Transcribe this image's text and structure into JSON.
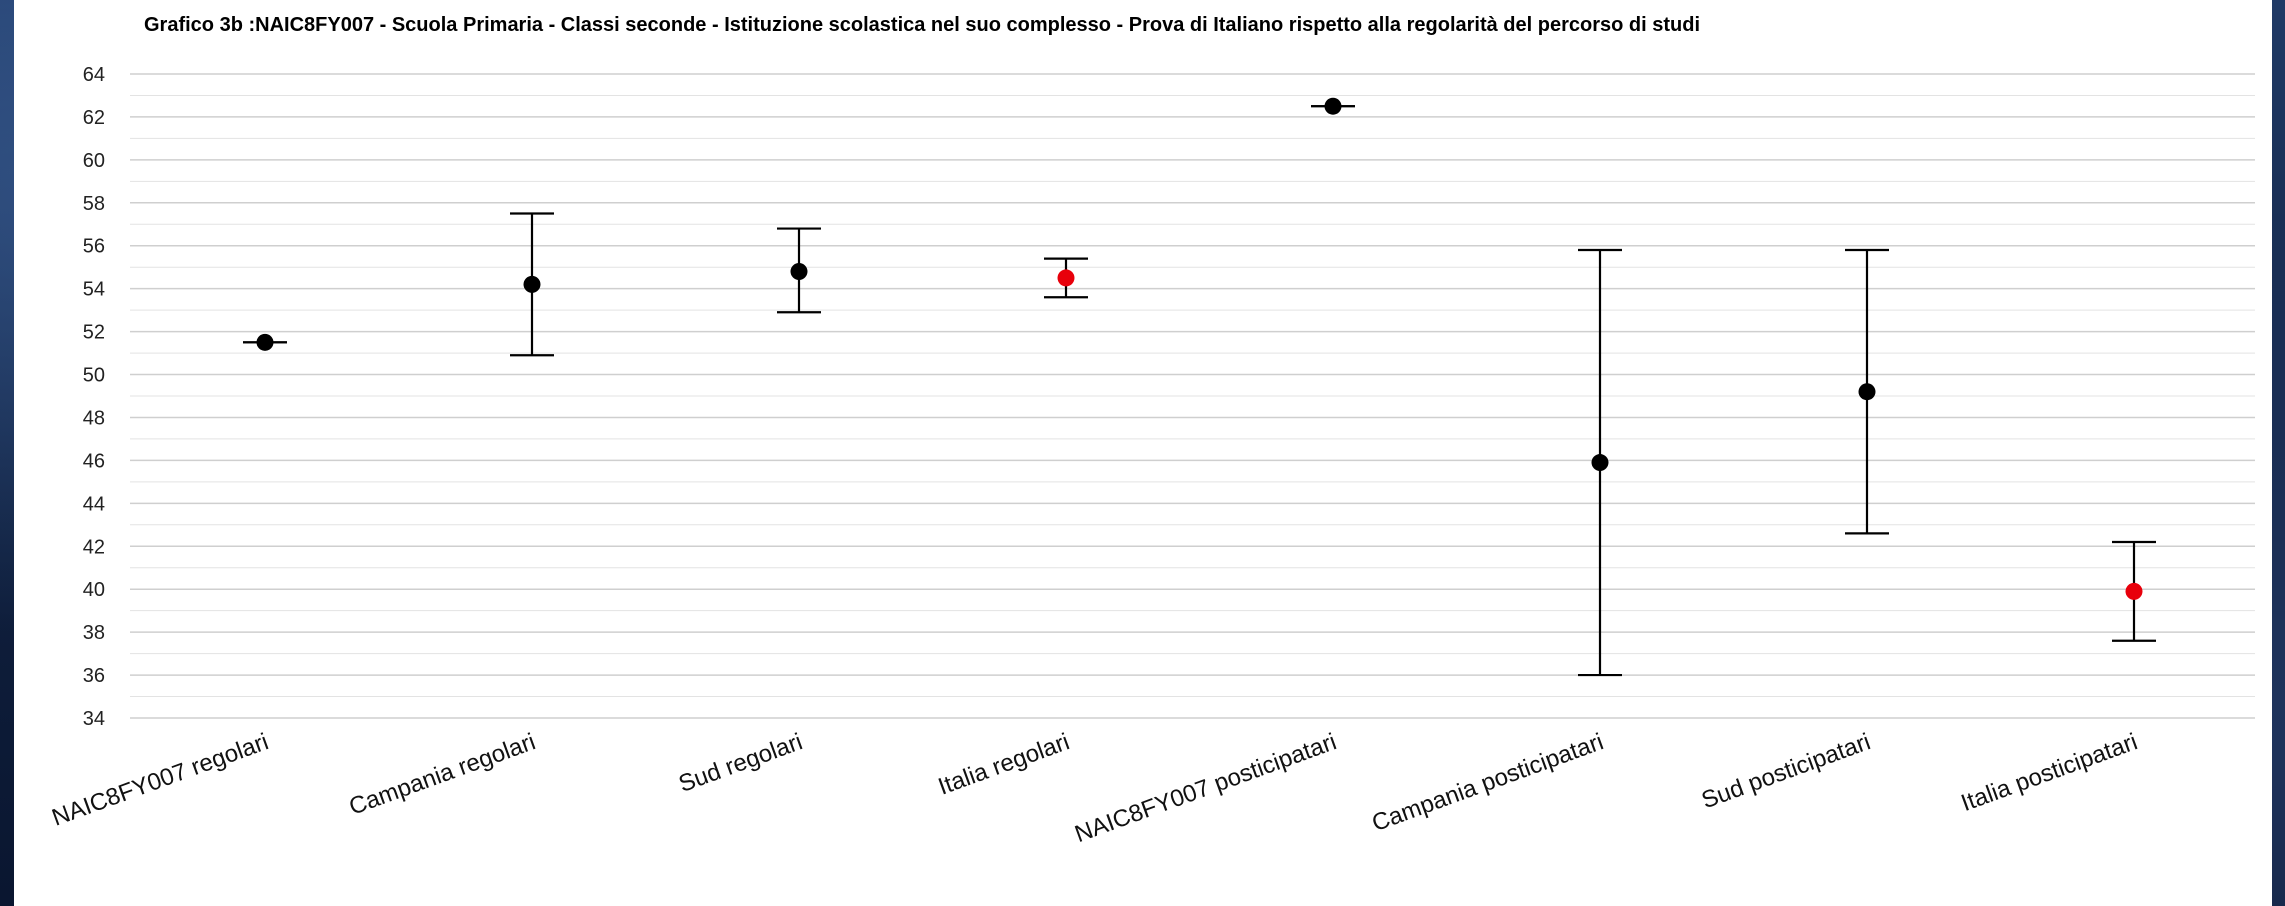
{
  "chart_data": {
    "type": "scatter",
    "subtype": "error-bar",
    "title": "Grafico 3b :NAIC8FY007 - Scuola Primaria - Classi seconde - Istituzione scolastica nel suo complesso - Prova di Italiano rispetto alla regolarità del percorso di studi",
    "xlabel": "",
    "ylabel": "",
    "ylim": [
      34,
      64
    ],
    "yticks": [
      34,
      36,
      38,
      40,
      42,
      44,
      46,
      48,
      50,
      52,
      54,
      56,
      58,
      60,
      62,
      64
    ],
    "grid": true,
    "legend": "none",
    "categories": [
      "NAIC8FY007 regolari",
      "Campania regolari",
      "Sud regolari",
      "Italia regolari",
      "NAIC8FY007 posticipatari",
      "Campania posticipatari",
      "Sud posticipatari",
      "Italia posticipatari"
    ],
    "points": [
      {
        "category": "NAIC8FY007 regolari",
        "value": 51.5,
        "low": 51.5,
        "high": 51.5,
        "color": "#000000"
      },
      {
        "category": "Campania regolari",
        "value": 54.2,
        "low": 50.9,
        "high": 57.5,
        "color": "#000000"
      },
      {
        "category": "Sud regolari",
        "value": 54.8,
        "low": 52.9,
        "high": 56.8,
        "color": "#000000"
      },
      {
        "category": "Italia regolari",
        "value": 54.5,
        "low": 53.6,
        "high": 55.4,
        "color": "#e8000b"
      },
      {
        "category": "NAIC8FY007 posticipatari",
        "value": 62.5,
        "low": 62.5,
        "high": 62.5,
        "color": "#000000"
      },
      {
        "category": "Campania posticipatari",
        "value": 45.9,
        "low": 36.0,
        "high": 55.8,
        "color": "#000000"
      },
      {
        "category": "Sud posticipatari",
        "value": 49.2,
        "low": 42.6,
        "high": 55.8,
        "color": "#000000"
      },
      {
        "category": "Italia posticipatari",
        "value": 39.9,
        "low": 37.6,
        "high": 42.2,
        "color": "#e8000b"
      }
    ]
  }
}
